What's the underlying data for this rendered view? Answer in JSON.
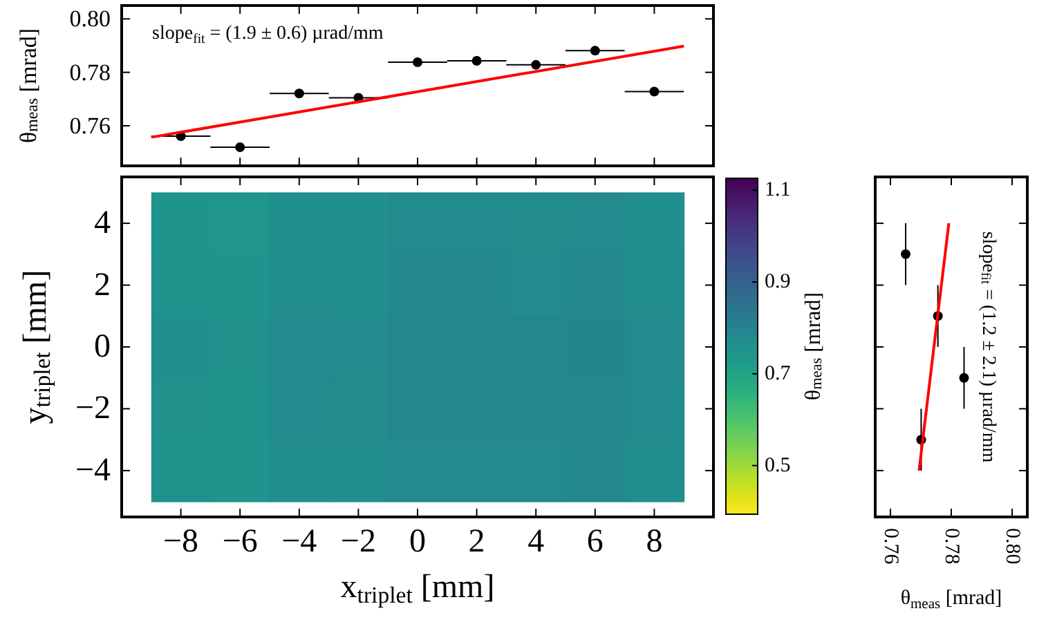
{
  "chart_data": [
    {
      "type": "scatter",
      "ylabel": "θ$_{meas}$ [mrad]",
      "annotations": [
        "slope$_{fit}$ = (1.9 ± 0.6) µrad/mm"
      ],
      "xlim": [
        -10,
        10
      ],
      "xticks": [
        -8,
        -6,
        -4,
        -2,
        0,
        2,
        4,
        6,
        8
      ],
      "ylim": [
        0.745,
        0.805
      ],
      "yticks": [
        0.76,
        0.78,
        {
          "value": 0.8,
          "label": "0.80"
        }
      ],
      "tick_labels": "y",
      "marker": "circle",
      "series": [
        {
          "color": "#000000",
          "x": [
            -8,
            -6,
            -4,
            -2,
            0,
            2,
            4,
            6,
            8
          ],
          "values": [
            0.7561,
            0.752,
            0.7721,
            0.7705,
            0.7838,
            0.7843,
            0.7828,
            0.7881,
            0.7728
          ],
          "xerrors": [
            1,
            1,
            1,
            1,
            1,
            1,
            1,
            1,
            1
          ]
        },
        {
          "type": "line",
          "color": "#ff0000",
          "marker": "none",
          "x": [
            -9,
            9
          ],
          "values": [
            0.7557,
            0.7898
          ]
        }
      ]
    },
    {
      "type": "heatmap",
      "xlabel": "x$_{triplet}$ [mm]",
      "ylabel": "y$_{triplet}$ [mm]",
      "clabel": "θ$_{meas}$ [mrad]",
      "categories": [
        "−8",
        "−6",
        "−4",
        "−2",
        "0",
        "2",
        "4",
        "6",
        "8"
      ],
      "y_categories": [
        "4",
        "2",
        "0",
        "−2",
        "−4"
      ],
      "clim": [
        0.394,
        1.126
      ],
      "cticks": [
        0.5,
        0.7,
        0.9,
        1.1
      ],
      "cells": [
        [
          0.747,
          0.743,
          0.763,
          0.762,
          0.775,
          0.775,
          0.774,
          0.779,
          0.764
        ],
        [
          0.753,
          0.749,
          0.769,
          0.768,
          0.781,
          0.781,
          0.78,
          0.785,
          0.77
        ],
        [
          0.762,
          0.758,
          0.778,
          0.777,
          0.79,
          0.79,
          0.789,
          0.794,
          0.779
        ],
        [
          0.759,
          0.755,
          0.775,
          0.774,
          0.787,
          0.787,
          0.786,
          0.791,
          0.776
        ],
        [
          0.752,
          0.748,
          0.768,
          0.767,
          0.78,
          0.78,
          0.779,
          0.784,
          0.769
        ]
      ]
    },
    {
      "type": "scatter",
      "xlabel": "θ$_{meas}$ [mrad]",
      "annotations": [
        "slope$_{fit}$ = (1.2 ± 2.1) µrad/mm"
      ],
      "xlim": [
        0.755,
        0.805
      ],
      "xticks": [
        0.76,
        0.78,
        {
          "value": 0.8,
          "label": "0.80"
        }
      ],
      "ylim": [
        -5.5,
        5.5
      ],
      "yticks": [
        4,
        2,
        0,
        -2,
        -4
      ],
      "tick_labels": "x",
      "marker": "circle",
      "series": [
        {
          "color": "#000000",
          "x": [
            0.765,
            0.7756,
            0.7842,
            0.7701
          ],
          "values": [
            3,
            1,
            -1,
            -3
          ],
          "errors": [
            1,
            1,
            1,
            1
          ]
        },
        {
          "type": "line",
          "color": "#ff0000",
          "marker": "none",
          "x": [
            0.7694,
            0.7792
          ],
          "values": [
            -4,
            4
          ]
        }
      ]
    }
  ]
}
